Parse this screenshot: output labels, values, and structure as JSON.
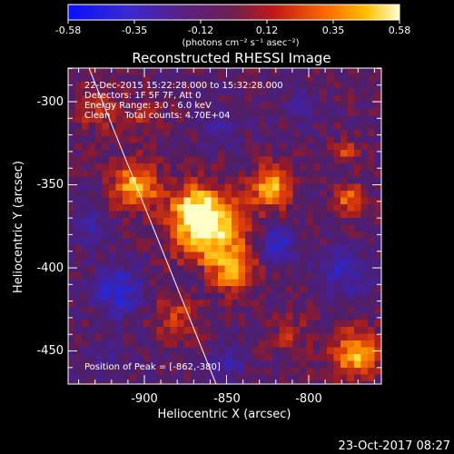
{
  "colorbar": {
    "tick_labels": [
      "-0.58",
      "-0.35",
      "-0.12",
      "0.12",
      "0.35",
      "0.58"
    ],
    "unit_label": "(photons cm⁻² s⁻¹ asec⁻²)",
    "range": [
      -0.58,
      0.58
    ]
  },
  "image": {
    "title": "Reconstructed RHESSI Image",
    "x_axis": {
      "label": "Heliocentric X (arcsec)",
      "ticks": [
        "-900",
        "-850",
        "-800"
      ]
    },
    "y_axis": {
      "label": "Heliocentric Y (arcsec)",
      "ticks": [
        "-300",
        "-350",
        "-400",
        "-450"
      ]
    },
    "annotations": {
      "time_range": "22-Dec-2015 15:22:28.000 to 15:32:28.000",
      "detectors": "Detectors: 1F 5F 7F, Att 0",
      "energy": "Energy Range: 3.0 - 6.0 keV",
      "method": "Clean     Total counts: 4.70E+04",
      "peak": "Position of Peak = [-862,-380]"
    }
  },
  "footer": {
    "date": "23-Oct-2017 08:27"
  },
  "colors": {
    "background": "#000000",
    "text": "#ffffff",
    "colormap": [
      "#1010ff",
      "#4020a0",
      "#502060",
      "#a02018",
      "#e05010",
      "#ffb000",
      "#ffffc0"
    ]
  }
}
